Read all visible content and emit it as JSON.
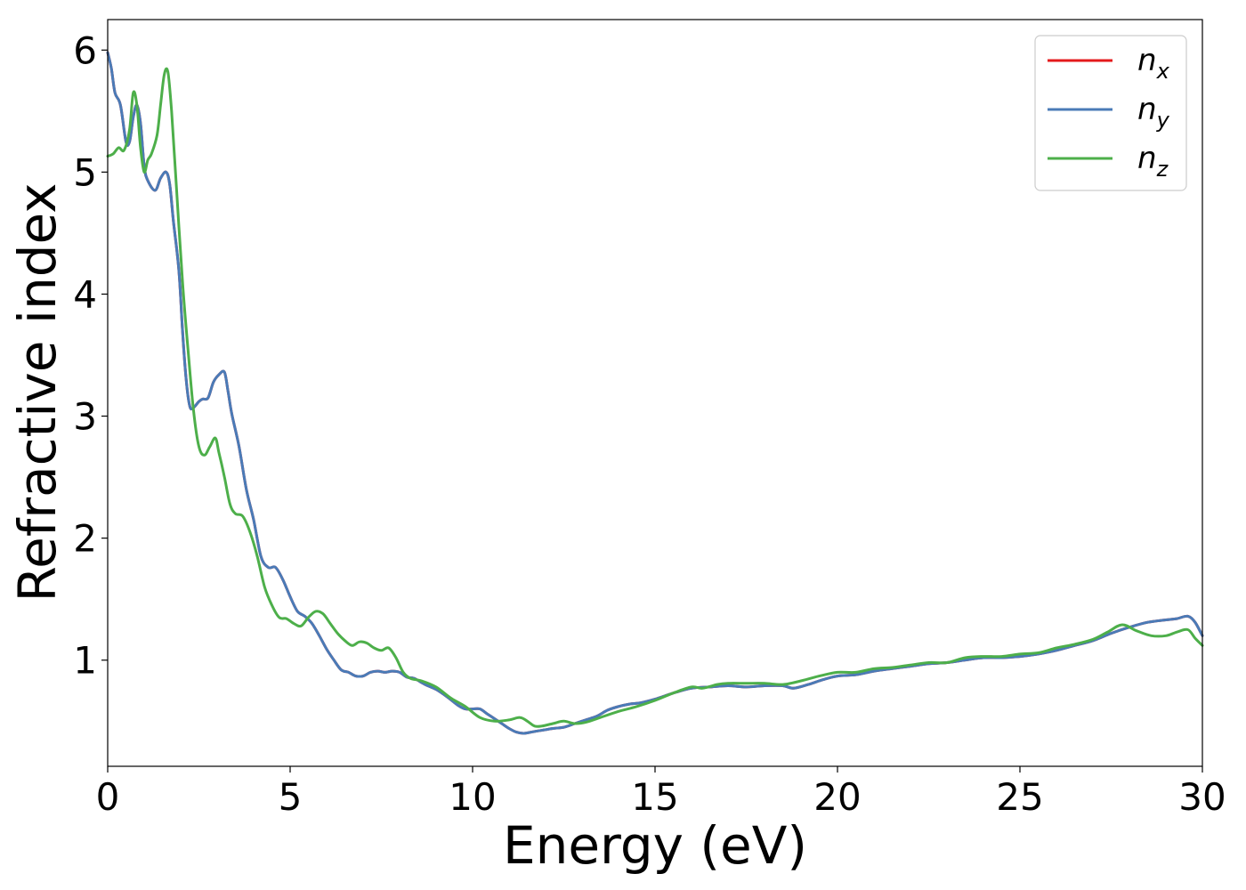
{
  "chart_data": {
    "type": "line",
    "xlabel": "Energy (eV)",
    "ylabel": "Refractive index",
    "xlim": [
      0,
      30
    ],
    "ylim": [
      0.13,
      6.25
    ],
    "xticks": [
      "0",
      "5",
      "10",
      "15",
      "20",
      "25",
      "30"
    ],
    "yticks": [
      "1",
      "2",
      "3",
      "4",
      "5",
      "6"
    ],
    "grid": false,
    "legend_position": "top-right",
    "series": [
      {
        "name": "n_x",
        "label_base": "n",
        "label_sub": "x",
        "color": "#e41a1c",
        "x": [
          0,
          0.1,
          0.2,
          0.35,
          0.5,
          0.6,
          0.7,
          0.8,
          0.9,
          1.0,
          1.1,
          1.3,
          1.45,
          1.6,
          1.7,
          1.8,
          1.95,
          2.05,
          2.15,
          2.25,
          2.35,
          2.5,
          2.6,
          2.75,
          2.9,
          3.05,
          3.2,
          3.3,
          3.4,
          3.6,
          3.8,
          4.0,
          4.2,
          4.4,
          4.6,
          4.8,
          5.0,
          5.2,
          5.4,
          5.6,
          5.8,
          6.0,
          6.2,
          6.4,
          6.6,
          6.8,
          7.0,
          7.2,
          7.4,
          7.6,
          7.8,
          8.0,
          8.2,
          8.4,
          8.7,
          9.0,
          9.3,
          9.6,
          9.8,
          10.0,
          10.2,
          10.4,
          10.6,
          10.8,
          11.0,
          11.2,
          11.4,
          11.6,
          11.8,
          12.0,
          12.2,
          12.5,
          12.8,
          13.1,
          13.4,
          13.7,
          14.0,
          14.3,
          14.6,
          15.0,
          15.5,
          16.0,
          16.5,
          17.0,
          17.5,
          18.0,
          18.5,
          18.8,
          19.2,
          19.6,
          20.0,
          20.5,
          21.0,
          21.5,
          22.0,
          22.5,
          23.0,
          23.5,
          24.0,
          24.5,
          25.0,
          25.5,
          26.0,
          26.5,
          27.0,
          27.5,
          28.0,
          28.5,
          29.0,
          29.3,
          29.6,
          29.8,
          30.0
        ],
        "y": [
          5.98,
          5.85,
          5.65,
          5.55,
          5.25,
          5.25,
          5.45,
          5.55,
          5.4,
          5.05,
          4.93,
          4.85,
          4.95,
          5.0,
          4.9,
          4.6,
          4.2,
          3.7,
          3.3,
          3.08,
          3.07,
          3.12,
          3.14,
          3.15,
          3.28,
          3.34,
          3.36,
          3.2,
          3.02,
          2.75,
          2.4,
          2.15,
          1.85,
          1.76,
          1.76,
          1.66,
          1.52,
          1.4,
          1.36,
          1.3,
          1.2,
          1.09,
          1.0,
          0.92,
          0.9,
          0.87,
          0.87,
          0.9,
          0.91,
          0.9,
          0.91,
          0.9,
          0.86,
          0.85,
          0.8,
          0.76,
          0.7,
          0.63,
          0.6,
          0.6,
          0.6,
          0.56,
          0.52,
          0.48,
          0.44,
          0.41,
          0.4,
          0.41,
          0.42,
          0.43,
          0.44,
          0.45,
          0.48,
          0.51,
          0.54,
          0.59,
          0.62,
          0.64,
          0.65,
          0.68,
          0.73,
          0.77,
          0.78,
          0.79,
          0.78,
          0.79,
          0.79,
          0.77,
          0.8,
          0.84,
          0.87,
          0.88,
          0.91,
          0.93,
          0.95,
          0.97,
          0.98,
          1.0,
          1.02,
          1.02,
          1.03,
          1.05,
          1.08,
          1.12,
          1.16,
          1.22,
          1.27,
          1.31,
          1.33,
          1.34,
          1.36,
          1.31,
          1.2
        ]
      },
      {
        "name": "n_y",
        "label_base": "n",
        "label_sub": "y",
        "color": "#4a7bb7",
        "x": [
          0,
          0.1,
          0.2,
          0.35,
          0.5,
          0.6,
          0.7,
          0.8,
          0.9,
          1.0,
          1.1,
          1.3,
          1.45,
          1.6,
          1.7,
          1.8,
          1.95,
          2.05,
          2.15,
          2.25,
          2.35,
          2.5,
          2.6,
          2.75,
          2.9,
          3.05,
          3.2,
          3.3,
          3.4,
          3.6,
          3.8,
          4.0,
          4.2,
          4.4,
          4.6,
          4.8,
          5.0,
          5.2,
          5.4,
          5.6,
          5.8,
          6.0,
          6.2,
          6.4,
          6.6,
          6.8,
          7.0,
          7.2,
          7.4,
          7.6,
          7.8,
          8.0,
          8.2,
          8.4,
          8.7,
          9.0,
          9.3,
          9.6,
          9.8,
          10.0,
          10.2,
          10.4,
          10.6,
          10.8,
          11.0,
          11.2,
          11.4,
          11.6,
          11.8,
          12.0,
          12.2,
          12.5,
          12.8,
          13.1,
          13.4,
          13.7,
          14.0,
          14.3,
          14.6,
          15.0,
          15.5,
          16.0,
          16.5,
          17.0,
          17.5,
          18.0,
          18.5,
          18.8,
          19.2,
          19.6,
          20.0,
          20.5,
          21.0,
          21.5,
          22.0,
          22.5,
          23.0,
          23.5,
          24.0,
          24.5,
          25.0,
          25.5,
          26.0,
          26.5,
          27.0,
          27.5,
          28.0,
          28.5,
          29.0,
          29.3,
          29.6,
          29.8,
          30.0
        ],
        "y": [
          5.98,
          5.85,
          5.65,
          5.55,
          5.25,
          5.25,
          5.45,
          5.55,
          5.4,
          5.05,
          4.93,
          4.85,
          4.95,
          5.0,
          4.9,
          4.6,
          4.2,
          3.7,
          3.3,
          3.08,
          3.07,
          3.12,
          3.14,
          3.15,
          3.28,
          3.34,
          3.36,
          3.2,
          3.02,
          2.75,
          2.4,
          2.15,
          1.85,
          1.76,
          1.76,
          1.66,
          1.52,
          1.4,
          1.36,
          1.3,
          1.2,
          1.09,
          1.0,
          0.92,
          0.9,
          0.87,
          0.87,
          0.9,
          0.91,
          0.9,
          0.91,
          0.9,
          0.86,
          0.85,
          0.8,
          0.76,
          0.7,
          0.63,
          0.6,
          0.6,
          0.6,
          0.56,
          0.52,
          0.48,
          0.44,
          0.41,
          0.4,
          0.41,
          0.42,
          0.43,
          0.44,
          0.45,
          0.48,
          0.51,
          0.54,
          0.59,
          0.62,
          0.64,
          0.65,
          0.68,
          0.73,
          0.77,
          0.78,
          0.79,
          0.78,
          0.79,
          0.79,
          0.77,
          0.8,
          0.84,
          0.87,
          0.88,
          0.91,
          0.93,
          0.95,
          0.97,
          0.98,
          1.0,
          1.02,
          1.02,
          1.03,
          1.05,
          1.08,
          1.12,
          1.16,
          1.22,
          1.27,
          1.31,
          1.33,
          1.34,
          1.36,
          1.31,
          1.2
        ]
      },
      {
        "name": "n_z",
        "label_base": "n",
        "label_sub": "z",
        "color": "#4daf4a",
        "x": [
          0,
          0.15,
          0.3,
          0.45,
          0.6,
          0.7,
          0.8,
          0.9,
          1.0,
          1.1,
          1.2,
          1.35,
          1.45,
          1.55,
          1.65,
          1.75,
          1.9,
          2.05,
          2.2,
          2.35,
          2.5,
          2.65,
          2.8,
          2.95,
          3.05,
          3.2,
          3.35,
          3.5,
          3.7,
          3.9,
          4.1,
          4.3,
          4.5,
          4.7,
          4.9,
          5.1,
          5.3,
          5.5,
          5.7,
          5.9,
          6.1,
          6.3,
          6.5,
          6.7,
          6.9,
          7.1,
          7.3,
          7.5,
          7.7,
          7.9,
          8.1,
          8.3,
          8.6,
          9.0,
          9.4,
          9.8,
          10.2,
          10.6,
          11.0,
          11.3,
          11.5,
          11.7,
          11.9,
          12.2,
          12.5,
          12.8,
          13.1,
          13.5,
          14.0,
          14.5,
          15.0,
          15.5,
          16.0,
          16.3,
          16.7,
          17.0,
          17.5,
          18.0,
          18.5,
          19.0,
          19.5,
          20.0,
          20.5,
          21.0,
          21.5,
          22.0,
          22.5,
          23.0,
          23.5,
          24.0,
          24.5,
          25.0,
          25.5,
          26.0,
          26.5,
          27.0,
          27.4,
          27.8,
          28.2,
          28.6,
          29.0,
          29.3,
          29.6,
          29.8,
          30.0
        ],
        "y": [
          5.13,
          5.15,
          5.2,
          5.18,
          5.35,
          5.65,
          5.55,
          5.2,
          5.0,
          5.1,
          5.15,
          5.3,
          5.55,
          5.8,
          5.82,
          5.5,
          4.8,
          4.1,
          3.55,
          3.05,
          2.75,
          2.68,
          2.75,
          2.82,
          2.7,
          2.5,
          2.28,
          2.2,
          2.18,
          2.05,
          1.85,
          1.6,
          1.45,
          1.35,
          1.34,
          1.3,
          1.28,
          1.35,
          1.4,
          1.38,
          1.3,
          1.22,
          1.16,
          1.12,
          1.15,
          1.14,
          1.1,
          1.08,
          1.1,
          1.02,
          0.9,
          0.85,
          0.83,
          0.78,
          0.69,
          0.62,
          0.53,
          0.5,
          0.51,
          0.53,
          0.5,
          0.46,
          0.46,
          0.48,
          0.5,
          0.48,
          0.49,
          0.53,
          0.58,
          0.62,
          0.67,
          0.73,
          0.78,
          0.77,
          0.8,
          0.81,
          0.81,
          0.81,
          0.8,
          0.83,
          0.87,
          0.9,
          0.9,
          0.93,
          0.94,
          0.96,
          0.98,
          0.98,
          1.02,
          1.03,
          1.03,
          1.05,
          1.06,
          1.1,
          1.13,
          1.17,
          1.23,
          1.29,
          1.24,
          1.2,
          1.2,
          1.23,
          1.25,
          1.18,
          1.12
        ]
      }
    ]
  }
}
